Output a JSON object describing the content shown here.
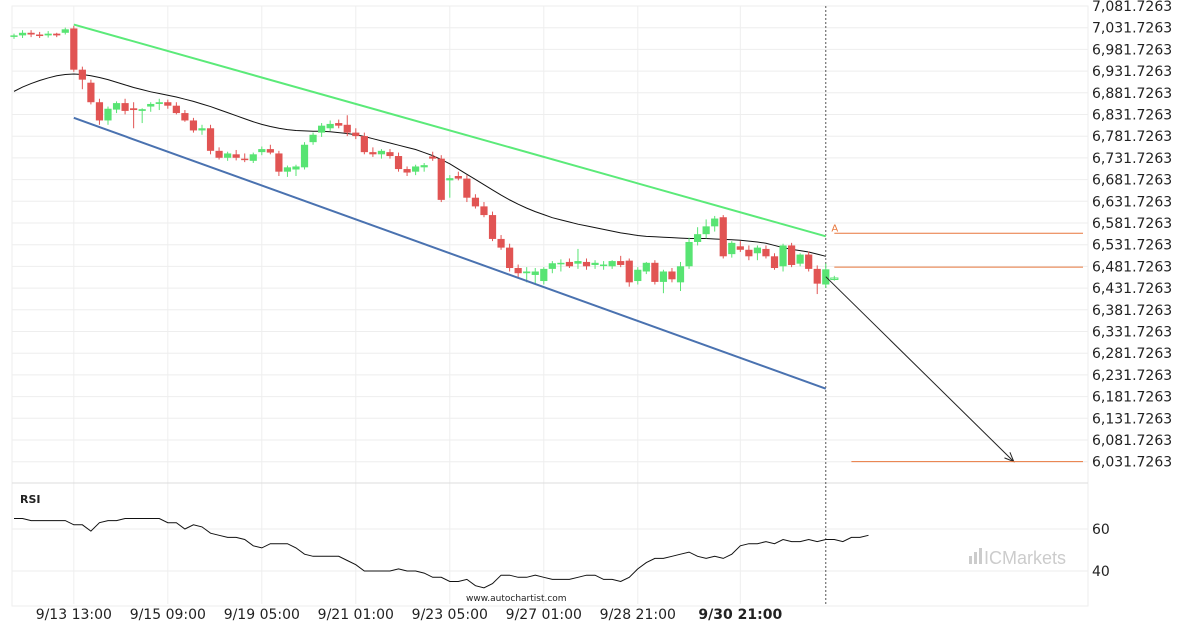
{
  "chart_data": {
    "type": "candlestick",
    "y_axis": {
      "ylim": [
        6000,
        7095
      ],
      "ticks": [
        "7,081.7263",
        "7,031.7263",
        "6,981.7263",
        "6,931.7263",
        "6,881.7263",
        "6,831.7263",
        "6,781.7263",
        "6,731.7263",
        "6,681.7263",
        "6,631.7263",
        "6,581.7263",
        "6,531.7263",
        "6,481.7263",
        "6,431.7263",
        "6,381.7263",
        "6,331.7263",
        "6,281.7263",
        "6,231.7263",
        "6,181.7263",
        "6,131.7263",
        "6,081.7263",
        "6,031.7263"
      ]
    },
    "x_axis": {
      "ticks": [
        {
          "label": "9/13 13:00",
          "i": 7
        },
        {
          "label": "9/15 09:00",
          "i": 18
        },
        {
          "label": "9/19 05:00",
          "i": 29
        },
        {
          "label": "9/21 01:00",
          "i": 40
        },
        {
          "label": "9/23 05:00",
          "i": 51
        },
        {
          "label": "9/27 01:00",
          "i": 62
        },
        {
          "label": "9/28 21:00",
          "i": 73
        },
        {
          "label": "9/30 21:00",
          "i": 85,
          "bold": true
        }
      ]
    },
    "candles": [
      {
        "o": 7012,
        "h": 7018,
        "l": 7006,
        "c": 7014
      },
      {
        "o": 7014,
        "h": 7026,
        "l": 7008,
        "c": 7020
      },
      {
        "o": 7020,
        "h": 7026,
        "l": 7010,
        "c": 7016
      },
      {
        "o": 7016,
        "h": 7022,
        "l": 7008,
        "c": 7014
      },
      {
        "o": 7014,
        "h": 7024,
        "l": 7009,
        "c": 7018
      },
      {
        "o": 7018,
        "h": 7020,
        "l": 7010,
        "c": 7014
      },
      {
        "o": 7020,
        "h": 7032,
        "l": 7016,
        "c": 7028
      },
      {
        "o": 7030,
        "h": 7036,
        "l": 6930,
        "c": 6935
      },
      {
        "o": 6935,
        "h": 6942,
        "l": 6890,
        "c": 6912
      },
      {
        "o": 6905,
        "h": 6912,
        "l": 6855,
        "c": 6860
      },
      {
        "o": 6860,
        "h": 6868,
        "l": 6808,
        "c": 6818
      },
      {
        "o": 6818,
        "h": 6850,
        "l": 6808,
        "c": 6845
      },
      {
        "o": 6843,
        "h": 6862,
        "l": 6835,
        "c": 6858
      },
      {
        "o": 6858,
        "h": 6868,
        "l": 6832,
        "c": 6840
      },
      {
        "o": 6846,
        "h": 6860,
        "l": 6800,
        "c": 6842
      },
      {
        "o": 6840,
        "h": 6846,
        "l": 6812,
        "c": 6844
      },
      {
        "o": 6850,
        "h": 6860,
        "l": 6838,
        "c": 6856
      },
      {
        "o": 6856,
        "h": 6868,
        "l": 6842,
        "c": 6860
      },
      {
        "o": 6860,
        "h": 6866,
        "l": 6845,
        "c": 6852
      },
      {
        "o": 6852,
        "h": 6860,
        "l": 6832,
        "c": 6835
      },
      {
        "o": 6835,
        "h": 6842,
        "l": 6815,
        "c": 6818
      },
      {
        "o": 6818,
        "h": 6824,
        "l": 6790,
        "c": 6795
      },
      {
        "o": 6795,
        "h": 6808,
        "l": 6785,
        "c": 6800
      },
      {
        "o": 6800,
        "h": 6808,
        "l": 6740,
        "c": 6748
      },
      {
        "o": 6748,
        "h": 6756,
        "l": 6728,
        "c": 6732
      },
      {
        "o": 6732,
        "h": 6746,
        "l": 6725,
        "c": 6742
      },
      {
        "o": 6740,
        "h": 6750,
        "l": 6726,
        "c": 6732
      },
      {
        "o": 6730,
        "h": 6742,
        "l": 6722,
        "c": 6728
      },
      {
        "o": 6725,
        "h": 6744,
        "l": 6720,
        "c": 6740
      },
      {
        "o": 6745,
        "h": 6758,
        "l": 6738,
        "c": 6752
      },
      {
        "o": 6752,
        "h": 6762,
        "l": 6740,
        "c": 6744
      },
      {
        "o": 6742,
        "h": 6748,
        "l": 6690,
        "c": 6700
      },
      {
        "o": 6700,
        "h": 6714,
        "l": 6688,
        "c": 6710
      },
      {
        "o": 6705,
        "h": 6716,
        "l": 6690,
        "c": 6712
      },
      {
        "o": 6710,
        "h": 6768,
        "l": 6705,
        "c": 6762
      },
      {
        "o": 6768,
        "h": 6790,
        "l": 6762,
        "c": 6785
      },
      {
        "o": 6790,
        "h": 6812,
        "l": 6780,
        "c": 6806
      },
      {
        "o": 6800,
        "h": 6818,
        "l": 6794,
        "c": 6810
      },
      {
        "o": 6812,
        "h": 6820,
        "l": 6800,
        "c": 6806
      },
      {
        "o": 6808,
        "h": 6830,
        "l": 6782,
        "c": 6790
      },
      {
        "o": 6790,
        "h": 6800,
        "l": 6775,
        "c": 6782
      },
      {
        "o": 6782,
        "h": 6790,
        "l": 6740,
        "c": 6745
      },
      {
        "o": 6745,
        "h": 6756,
        "l": 6734,
        "c": 6740
      },
      {
        "o": 6740,
        "h": 6752,
        "l": 6730,
        "c": 6748
      },
      {
        "o": 6745,
        "h": 6752,
        "l": 6730,
        "c": 6736
      },
      {
        "o": 6736,
        "h": 6744,
        "l": 6700,
        "c": 6706
      },
      {
        "o": 6706,
        "h": 6712,
        "l": 6690,
        "c": 6698
      },
      {
        "o": 6700,
        "h": 6716,
        "l": 6692,
        "c": 6712
      },
      {
        "o": 6710,
        "h": 6720,
        "l": 6700,
        "c": 6715
      },
      {
        "o": 6735,
        "h": 6746,
        "l": 6725,
        "c": 6730
      },
      {
        "o": 6730,
        "h": 6738,
        "l": 6630,
        "c": 6635
      },
      {
        "o": 6680,
        "h": 6692,
        "l": 6640,
        "c": 6685
      },
      {
        "o": 6690,
        "h": 6700,
        "l": 6680,
        "c": 6684
      },
      {
        "o": 6684,
        "h": 6692,
        "l": 6630,
        "c": 6640
      },
      {
        "o": 6640,
        "h": 6648,
        "l": 6615,
        "c": 6620
      },
      {
        "o": 6620,
        "h": 6630,
        "l": 6595,
        "c": 6600
      },
      {
        "o": 6600,
        "h": 6608,
        "l": 6540,
        "c": 6545
      },
      {
        "o": 6545,
        "h": 6554,
        "l": 6520,
        "c": 6525
      },
      {
        "o": 6525,
        "h": 6534,
        "l": 6470,
        "c": 6478
      },
      {
        "o": 6478,
        "h": 6486,
        "l": 6456,
        "c": 6466
      },
      {
        "o": 6466,
        "h": 6480,
        "l": 6445,
        "c": 6470
      },
      {
        "o": 6462,
        "h": 6478,
        "l": 6440,
        "c": 6470
      },
      {
        "o": 6448,
        "h": 6480,
        "l": 6440,
        "c": 6476
      },
      {
        "o": 6476,
        "h": 6494,
        "l": 6466,
        "c": 6489
      },
      {
        "o": 6489,
        "h": 6498,
        "l": 6470,
        "c": 6490
      },
      {
        "o": 6492,
        "h": 6500,
        "l": 6478,
        "c": 6482
      },
      {
        "o": 6488,
        "h": 6522,
        "l": 6476,
        "c": 6494
      },
      {
        "o": 6492,
        "h": 6500,
        "l": 6474,
        "c": 6482
      },
      {
        "o": 6485,
        "h": 6496,
        "l": 6476,
        "c": 6490
      },
      {
        "o": 6484,
        "h": 6494,
        "l": 6474,
        "c": 6486
      },
      {
        "o": 6482,
        "h": 6496,
        "l": 6476,
        "c": 6494
      },
      {
        "o": 6494,
        "h": 6506,
        "l": 6480,
        "c": 6485
      },
      {
        "o": 6495,
        "h": 6500,
        "l": 6435,
        "c": 6445
      },
      {
        "o": 6448,
        "h": 6480,
        "l": 6440,
        "c": 6474
      },
      {
        "o": 6470,
        "h": 6492,
        "l": 6464,
        "c": 6490
      },
      {
        "o": 6490,
        "h": 6496,
        "l": 6440,
        "c": 6446
      },
      {
        "o": 6446,
        "h": 6474,
        "l": 6420,
        "c": 6470
      },
      {
        "o": 6470,
        "h": 6478,
        "l": 6445,
        "c": 6452
      },
      {
        "o": 6445,
        "h": 6492,
        "l": 6425,
        "c": 6482
      },
      {
        "o": 6482,
        "h": 6548,
        "l": 6476,
        "c": 6538
      },
      {
        "o": 6538,
        "h": 6572,
        "l": 6530,
        "c": 6556
      },
      {
        "o": 6556,
        "h": 6590,
        "l": 6546,
        "c": 6574
      },
      {
        "o": 6574,
        "h": 6598,
        "l": 6562,
        "c": 6592
      },
      {
        "o": 6595,
        "h": 6600,
        "l": 6500,
        "c": 6505
      },
      {
        "o": 6510,
        "h": 6540,
        "l": 6502,
        "c": 6536
      },
      {
        "o": 6528,
        "h": 6540,
        "l": 6515,
        "c": 6520
      },
      {
        "o": 6520,
        "h": 6530,
        "l": 6496,
        "c": 6505
      },
      {
        "o": 6512,
        "h": 6530,
        "l": 6496,
        "c": 6525
      },
      {
        "o": 6522,
        "h": 6530,
        "l": 6500,
        "c": 6505
      },
      {
        "o": 6505,
        "h": 6512,
        "l": 6474,
        "c": 6478
      },
      {
        "o": 6482,
        "h": 6534,
        "l": 6470,
        "c": 6530
      },
      {
        "o": 6530,
        "h": 6536,
        "l": 6480,
        "c": 6485
      },
      {
        "o": 6488,
        "h": 6512,
        "l": 6482,
        "c": 6509
      },
      {
        "o": 6509,
        "h": 6516,
        "l": 6470,
        "c": 6476
      },
      {
        "o": 6476,
        "h": 6484,
        "l": 6418,
        "c": 6442
      },
      {
        "o": 6440,
        "h": 6488,
        "l": 6432,
        "c": 6475
      },
      {
        "o": 6455,
        "h": 6460,
        "l": 6449,
        "c": 6455
      }
    ],
    "moving_average": [
      6885,
      6895,
      6903,
      6910,
      6916,
      6921,
      6924,
      6925,
      6924,
      6921,
      6917,
      6912,
      6906,
      6900,
      6894,
      6889,
      6884,
      6880,
      6876,
      6872,
      6867,
      6862,
      6856,
      6850,
      6843,
      6836,
      6829,
      6822,
      6815,
      6809,
      6804,
      6800,
      6797,
      6795,
      6794,
      6793,
      6793,
      6792,
      6790,
      6788,
      6785,
      6781,
      6776,
      6771,
      6766,
      6761,
      6756,
      6751,
      6744,
      6737,
      6728,
      6718,
      6706,
      6694,
      6682,
      6670,
      6658,
      6646,
      6635,
      6625,
      6616,
      6608,
      6601,
      6594,
      6589,
      6584,
      6579,
      6575,
      6571,
      6567,
      6563,
      6559,
      6556,
      6553,
      6551,
      6550,
      6549,
      6548,
      6547,
      6546,
      6546,
      6546,
      6545,
      6544,
      6543,
      6542,
      6540,
      6538,
      6535,
      6530,
      6525,
      6521,
      6518,
      6515,
      6510,
      6505
    ],
    "channel": {
      "upper": {
        "from": {
          "i": 7,
          "y": 7039
        },
        "to": {
          "i": 95,
          "y": 6551
        }
      },
      "lower": {
        "from": {
          "i": 7,
          "y": 6824
        },
        "to": {
          "i": 95,
          "y": 6200
        }
      }
    },
    "forecast_arrow": {
      "from": {
        "i": 95,
        "y": 6458
      },
      "to": {
        "i": 117,
        "y": 6032
      }
    },
    "levels": [
      {
        "name": "pattern-level-a",
        "y": 6558,
        "from_i": 96,
        "to_i": 118
      },
      {
        "name": "resistance-level",
        "y": 6480,
        "from_i": 96,
        "to_i": 118
      },
      {
        "name": "target-level",
        "y": 6032,
        "from_i": 98,
        "to_i": 118
      }
    ],
    "pattern_marker": {
      "label": "A",
      "i": 96,
      "y": 6562
    },
    "current_time_index": 95,
    "rsi": {
      "label": "RSI",
      "ylim": [
        30,
        70
      ],
      "ticks": [
        60,
        40
      ],
      "values": [
        65,
        65,
        64,
        64,
        64,
        64,
        64,
        62,
        62,
        59,
        63,
        64,
        64,
        65,
        65,
        65,
        65,
        65,
        63,
        63,
        60,
        62,
        61,
        58,
        57,
        56,
        56,
        55,
        52,
        51,
        53,
        53,
        53,
        51,
        48,
        47,
        47,
        47,
        47,
        45,
        43,
        40,
        40,
        40,
        40,
        41,
        40,
        40,
        39,
        37,
        37,
        35,
        35,
        36,
        33,
        32,
        34,
        38,
        38,
        37,
        37,
        38,
        37,
        36,
        36,
        36,
        37,
        38,
        38,
        36,
        36,
        35,
        37,
        41,
        44,
        46,
        46,
        47,
        48,
        49,
        47,
        46,
        47,
        46,
        48,
        52,
        53,
        53,
        54,
        53,
        55,
        54,
        54,
        55,
        54,
        55,
        55,
        54,
        56,
        56,
        57
      ]
    },
    "colors": {
      "up": "#58e473",
      "down": "#e15453",
      "channel_upper": "#5bea79",
      "channel_lower": "#4a72b0",
      "level": "#e8773c",
      "ma": "#111111"
    }
  },
  "footer": {
    "watermark": "www.autochartist.com",
    "brand": "ICMarkets"
  }
}
